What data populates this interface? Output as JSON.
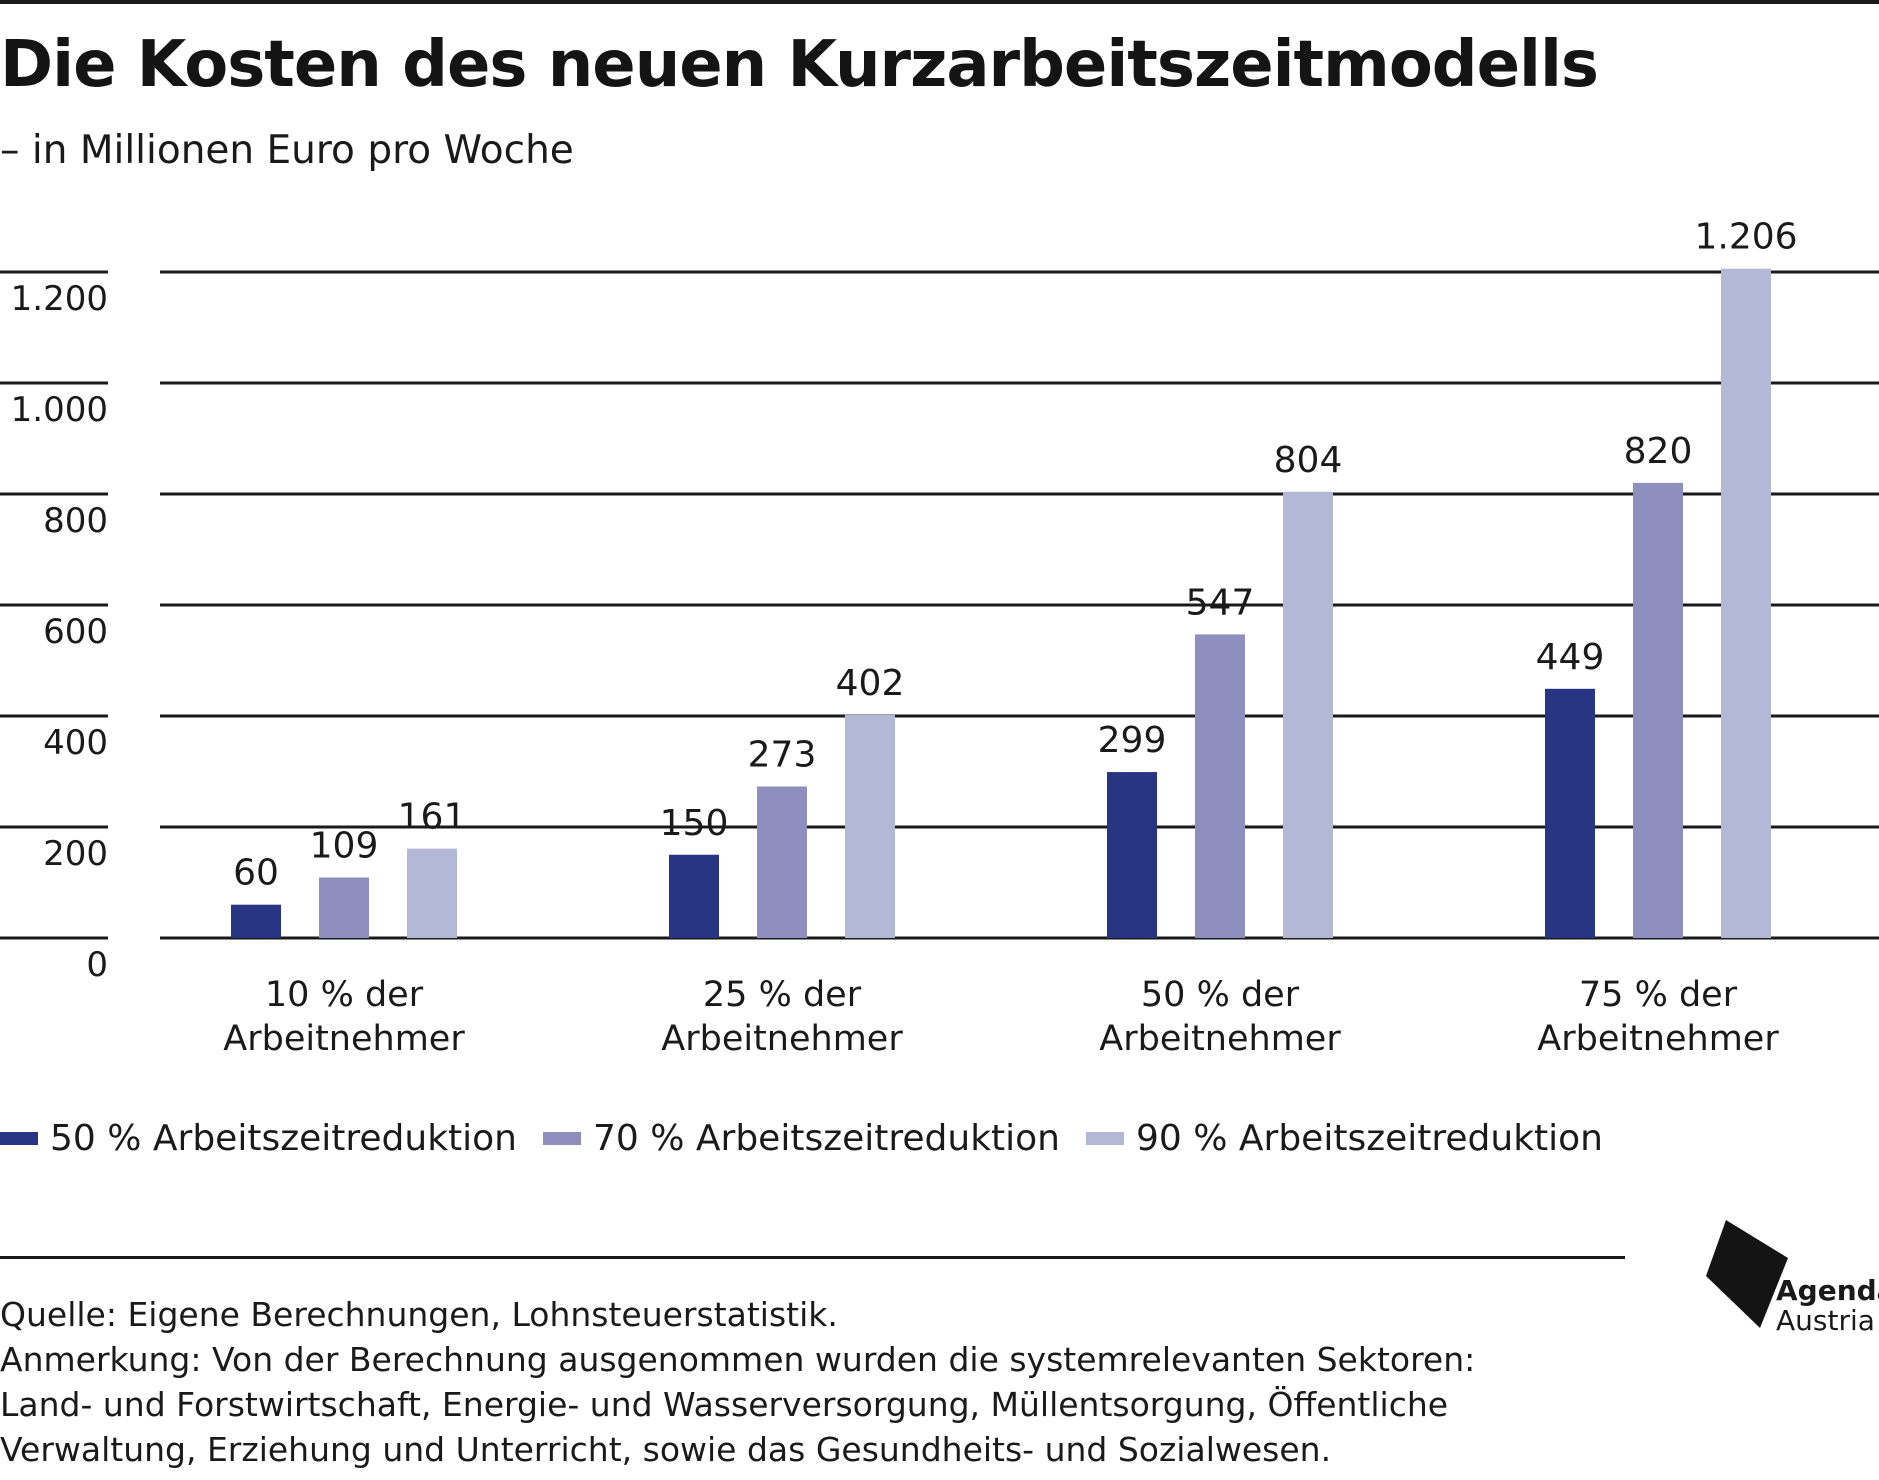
{
  "header": {
    "title": "Die Kosten des neuen Kurzarbeitszeitmodells",
    "subtitle": "– in Millionen Euro pro Woche"
  },
  "colors": {
    "series_50": "#273583",
    "series_70": "#8f8fbf",
    "series_90": "#b3b8d6",
    "grid": "#1a1a1a"
  },
  "chart_data": {
    "type": "bar",
    "categories": [
      [
        "10 % der",
        "Arbeitnehmer"
      ],
      [
        "25 % der",
        "Arbeitnehmer"
      ],
      [
        "50 % der",
        "Arbeitnehmer"
      ],
      [
        "75 % der",
        "Arbeitnehmer"
      ]
    ],
    "series": [
      {
        "name": "50 % Arbeitszeitreduktion",
        "color": "#273583",
        "values": [
          60,
          150,
          299,
          449
        ],
        "labels": [
          "60",
          "150",
          "299",
          "449"
        ]
      },
      {
        "name": "70 % Arbeitszeitreduktion",
        "color": "#8f8fbf",
        "values": [
          109,
          273,
          547,
          820
        ],
        "labels": [
          "109",
          "273",
          "547",
          "820"
        ]
      },
      {
        "name": "90 % Arbeitszeitreduktion",
        "color": "#b3b8d6",
        "values": [
          161,
          402,
          804,
          1206
        ],
        "labels": [
          "161",
          "402",
          "804",
          "1.206"
        ]
      }
    ],
    "yticks": [
      0,
      200,
      400,
      600,
      800,
      1000,
      1200
    ],
    "ytick_labels": [
      "0",
      "200",
      "400",
      "600",
      "800",
      "1.000",
      "1.200"
    ],
    "ylim": [
      0,
      1200
    ],
    "grid": true,
    "legend": "bottom-left"
  },
  "footer": {
    "source": "Quelle: Eigene Berechnungen, Lohnsteuerstatistik.",
    "note_lines": [
      "Anmerkung: Von der Berechnung ausgenommen wurden die systemrelevanten Sektoren:",
      "Land- und Forstwirtschaft, Energie- und Wasserversorgung, Müllentsorgung, Öffentliche",
      "Verwaltung, Erziehung und Unterricht, sowie das Gesundheits- und Sozialwesen."
    ]
  },
  "logo": {
    "line1": "Agenda",
    "line2": "Austria"
  }
}
